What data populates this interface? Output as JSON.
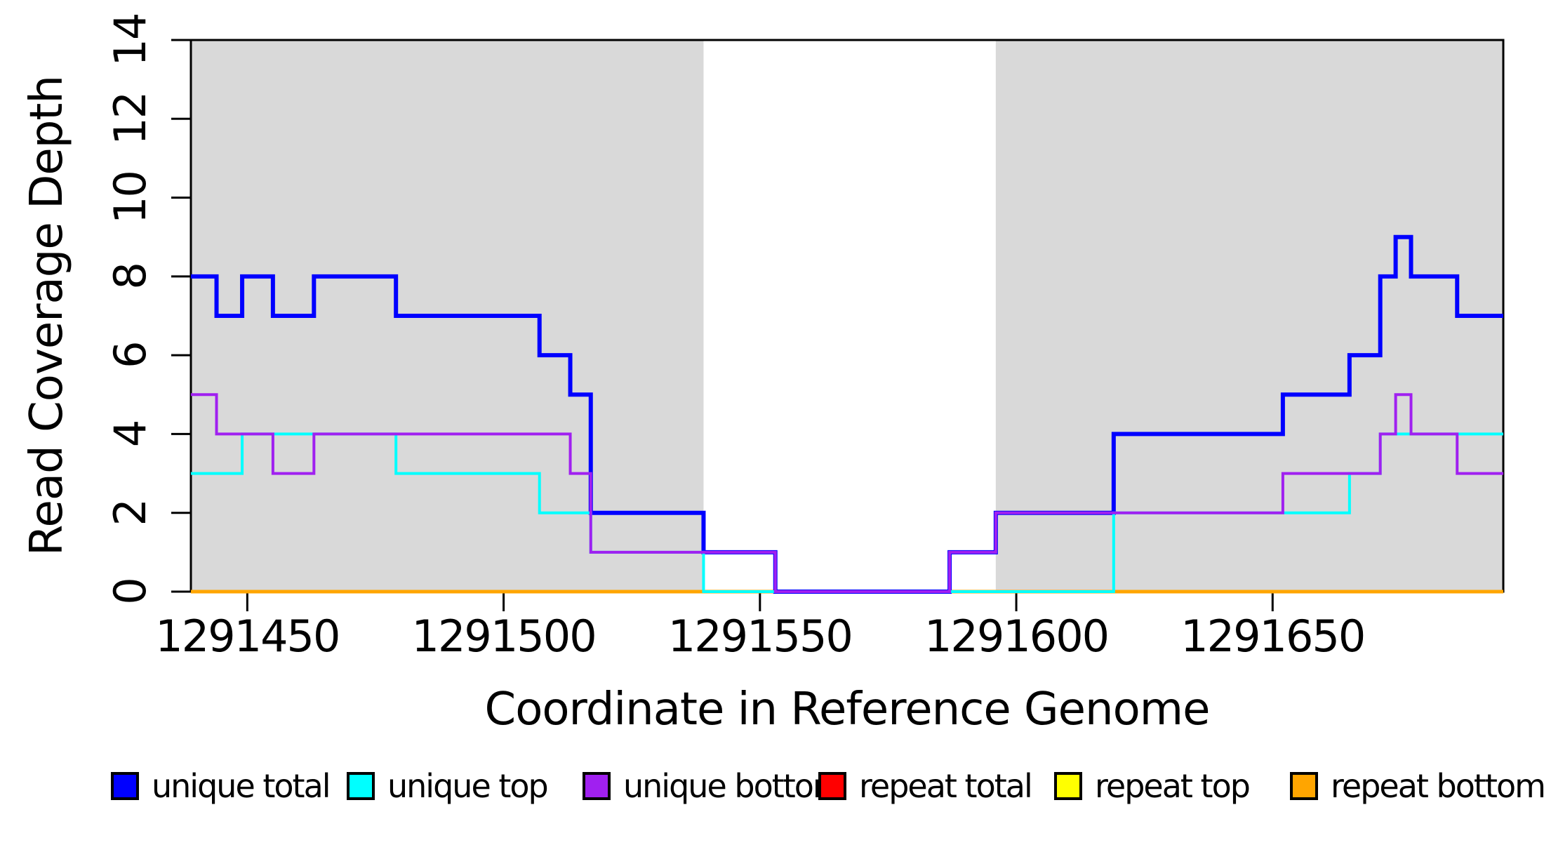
{
  "figure": {
    "background_color": "#ffffff",
    "axis_color": "#000000",
    "shade_color": "#d9d9d9"
  },
  "chart_data": {
    "type": "line",
    "subtype": "step",
    "title": "",
    "xlabel": "Coordinate in Reference Genome",
    "ylabel": "Read Coverage Depth",
    "xlim": [
      1291439,
      1291695
    ],
    "ylim": [
      0,
      14
    ],
    "x_ticks": [
      1291450,
      1291500,
      1291550,
      1291600,
      1291650
    ],
    "y_ticks": [
      0,
      2,
      4,
      6,
      8,
      10,
      12,
      14
    ],
    "grid": false,
    "legend_position": "bottom",
    "shaded_regions": [
      {
        "x0": 1291439,
        "x1": 1291539,
        "color": "#d9d9d9"
      },
      {
        "x0": 1291596,
        "x1": 1291695,
        "color": "#d9d9d9"
      }
    ],
    "x_end": 1291695,
    "series": [
      {
        "name": "unique total",
        "color": "#0000ff",
        "width": 6,
        "steps": [
          [
            1291439,
            8
          ],
          [
            1291444,
            7
          ],
          [
            1291449,
            8
          ],
          [
            1291455,
            7
          ],
          [
            1291463,
            8
          ],
          [
            1291479,
            7
          ],
          [
            1291507,
            6
          ],
          [
            1291513,
            5
          ],
          [
            1291517,
            2
          ],
          [
            1291539,
            1
          ],
          [
            1291553,
            0
          ],
          [
            1291587,
            1
          ],
          [
            1291596,
            2
          ],
          [
            1291619,
            4
          ],
          [
            1291652,
            5
          ],
          [
            1291665,
            6
          ],
          [
            1291671,
            8
          ],
          [
            1291674,
            9
          ],
          [
            1291677,
            8
          ],
          [
            1291686,
            7
          ]
        ]
      },
      {
        "name": "unique top",
        "color": "#00ffff",
        "width": 4,
        "steps": [
          [
            1291439,
            3
          ],
          [
            1291449,
            4
          ],
          [
            1291479,
            3
          ],
          [
            1291507,
            2
          ],
          [
            1291517,
            1
          ],
          [
            1291539,
            0
          ],
          [
            1291619,
            2
          ],
          [
            1291665,
            3
          ],
          [
            1291671,
            4
          ]
        ]
      },
      {
        "name": "unique bottom",
        "color": "#a020f0",
        "width": 4,
        "steps": [
          [
            1291439,
            5
          ],
          [
            1291444,
            4
          ],
          [
            1291455,
            3
          ],
          [
            1291463,
            4
          ],
          [
            1291513,
            3
          ],
          [
            1291517,
            1
          ],
          [
            1291553,
            0
          ],
          [
            1291587,
            1
          ],
          [
            1291596,
            2
          ],
          [
            1291652,
            3
          ],
          [
            1291671,
            4
          ],
          [
            1291674,
            5
          ],
          [
            1291677,
            4
          ],
          [
            1291686,
            3
          ]
        ]
      },
      {
        "name": "repeat total",
        "color": "#ff0000",
        "width": 4,
        "steps": [
          [
            1291439,
            0
          ]
        ]
      },
      {
        "name": "repeat top",
        "color": "#ffff00",
        "width": 4,
        "steps": [
          [
            1291439,
            0
          ]
        ]
      },
      {
        "name": "repeat bottom",
        "color": "#ffa500",
        "width": 5,
        "steps": [
          [
            1291439,
            0
          ]
        ]
      }
    ],
    "draw_order": [
      "repeat total",
      "repeat top",
      "repeat bottom",
      "unique total",
      "unique top",
      "unique bottom"
    ]
  },
  "legend": {
    "items": [
      {
        "label": "unique total",
        "color": "#0000ff"
      },
      {
        "label": "unique top",
        "color": "#00ffff"
      },
      {
        "label": "unique bottom",
        "color": "#a020f0"
      },
      {
        "label": "repeat total",
        "color": "#ff0000"
      },
      {
        "label": "repeat top",
        "color": "#ffff00"
      },
      {
        "label": "repeat bottom",
        "color": "#ffa500"
      }
    ]
  }
}
